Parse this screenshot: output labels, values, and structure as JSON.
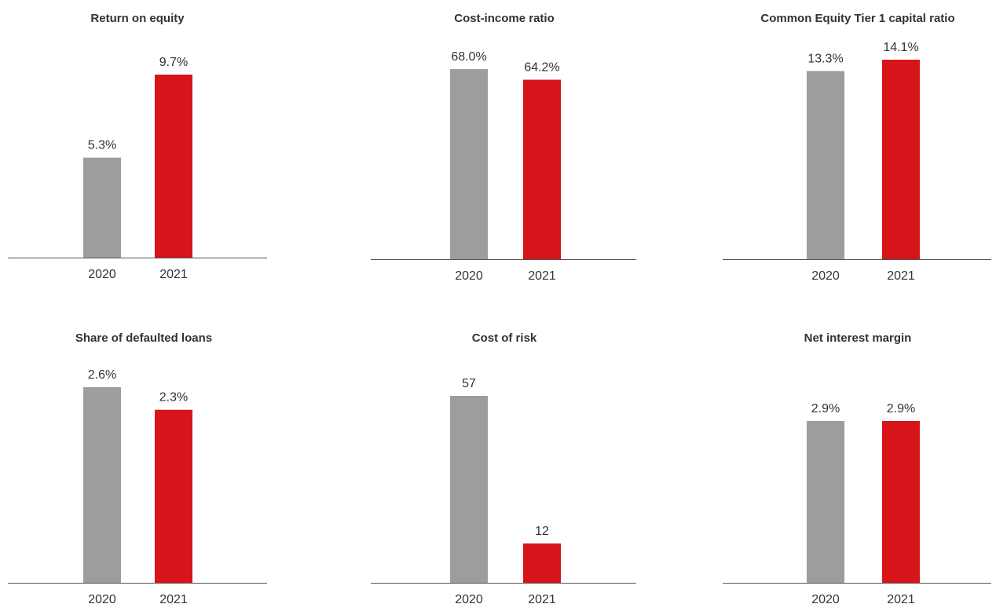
{
  "colors": {
    "bar_2020": "#9d9d9c",
    "bar_2021": "#d7141a",
    "axis": "#555555",
    "text": "#333333"
  },
  "chart_data": [
    {
      "type": "bar",
      "title": "Return on equity",
      "categories": [
        "2020",
        "2021"
      ],
      "values": [
        5.3,
        9.7
      ],
      "labels": [
        "5.3%",
        "9.7%"
      ]
    },
    {
      "type": "bar",
      "title": "Cost-income ratio",
      "categories": [
        "2020",
        "2021"
      ],
      "values": [
        68.0,
        64.2
      ],
      "labels": [
        "68.0%",
        "64.2%"
      ]
    },
    {
      "type": "bar",
      "title": "Common Equity Tier 1 capital ratio",
      "categories": [
        "2020",
        "2021"
      ],
      "values": [
        13.3,
        14.1
      ],
      "labels": [
        "13.3%",
        "14.1%"
      ]
    },
    {
      "type": "bar",
      "title": "Share of defaulted loans",
      "categories": [
        "2020",
        "2021"
      ],
      "values": [
        2.6,
        2.3
      ],
      "labels": [
        "2.6%",
        "2.3%"
      ]
    },
    {
      "type": "bar",
      "title": "Cost of risk",
      "categories": [
        "2020",
        "2021"
      ],
      "values": [
        57,
        12
      ],
      "labels": [
        "57",
        "12"
      ]
    },
    {
      "type": "bar",
      "title": "Net interest margin",
      "categories": [
        "2020",
        "2021"
      ],
      "values": [
        2.9,
        2.9
      ],
      "labels": [
        "2.9%",
        "2.9%"
      ]
    }
  ]
}
